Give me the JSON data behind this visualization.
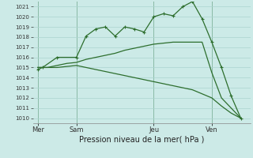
{
  "background_color": "#cceae7",
  "grid_color": "#aad4d0",
  "line_color": "#2d6e2d",
  "title": "Pression niveau de la mer( hPa )",
  "ylim": [
    1009.5,
    1021.5
  ],
  "yticks": [
    1010,
    1011,
    1012,
    1013,
    1014,
    1015,
    1016,
    1017,
    1018,
    1019,
    1020,
    1021
  ],
  "xtick_labels": [
    "Mer",
    "Sam",
    "Jeu",
    "Ven"
  ],
  "xtick_positions": [
    1,
    5,
    13,
    19
  ],
  "vline_positions": [
    1,
    5,
    13,
    19
  ],
  "line1_x": [
    1,
    1.5,
    3,
    5,
    6,
    7,
    8,
    9,
    10,
    11,
    12,
    13,
    14,
    15,
    16,
    17,
    18,
    19,
    20,
    21,
    22
  ],
  "line1_y": [
    1014.8,
    1015.0,
    1016.0,
    1016.0,
    1018.1,
    1018.8,
    1019.0,
    1018.1,
    1019.0,
    1018.8,
    1018.5,
    1020.0,
    1020.3,
    1020.1,
    1021.0,
    1021.5,
    1019.8,
    1017.5,
    1015.0,
    1012.2,
    1010.0
  ],
  "line2_x": [
    1,
    2,
    3,
    4,
    5,
    6,
    7,
    8,
    9,
    10,
    11,
    12,
    13,
    14,
    15,
    16,
    17,
    18,
    19,
    20,
    21,
    22
  ],
  "line2_y": [
    1015.0,
    1015.0,
    1015.2,
    1015.4,
    1015.5,
    1015.8,
    1016.0,
    1016.2,
    1016.4,
    1016.7,
    1016.9,
    1017.1,
    1017.3,
    1017.4,
    1017.5,
    1017.5,
    1017.5,
    1017.5,
    1014.5,
    1012.0,
    1011.0,
    1010.0
  ],
  "line3_x": [
    1,
    2,
    3,
    4,
    5,
    6,
    7,
    8,
    9,
    10,
    11,
    12,
    13,
    14,
    15,
    16,
    17,
    18,
    19,
    20,
    21,
    22
  ],
  "line3_y": [
    1015.0,
    1015.0,
    1015.0,
    1015.1,
    1015.2,
    1015.0,
    1014.8,
    1014.6,
    1014.4,
    1014.2,
    1014.0,
    1013.8,
    1013.6,
    1013.4,
    1013.2,
    1013.0,
    1012.8,
    1012.4,
    1012.0,
    1011.2,
    1010.5,
    1010.0
  ],
  "xlim": [
    0.5,
    23
  ],
  "marker": "+",
  "marker_size": 3,
  "linewidth": 0.9,
  "xlabel_fontsize": 7,
  "ytick_fontsize": 5,
  "xtick_fontsize": 6
}
